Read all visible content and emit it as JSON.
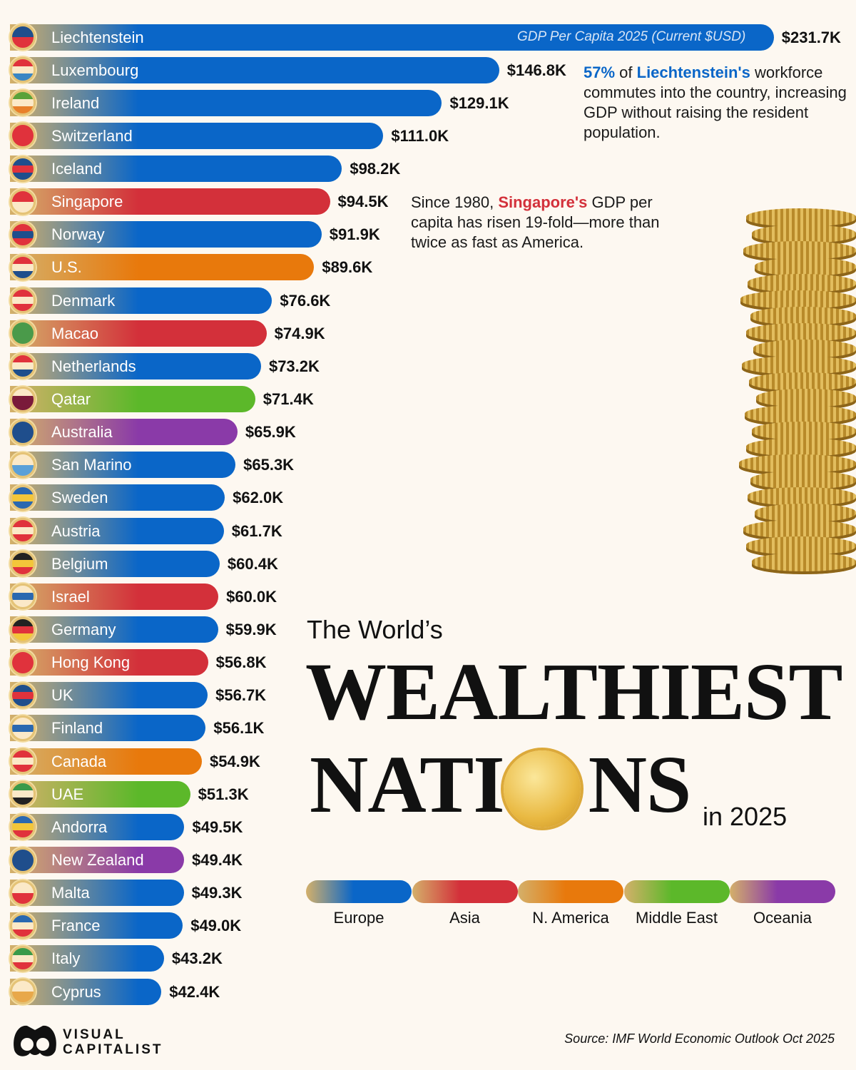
{
  "chart_data": {
    "type": "bar",
    "orientation": "horizontal",
    "title": "The World's WEALTHIEST NATIONS in 2025",
    "subtitle": "GDP Per Capita 2025 (Current $USD)",
    "value_format": "$K",
    "categories": [
      "Liechtenstein",
      "Luxembourg",
      "Ireland",
      "Switzerland",
      "Iceland",
      "Singapore",
      "Norway",
      "U.S.",
      "Denmark",
      "Macao",
      "Netherlands",
      "Qatar",
      "Australia",
      "San Marino",
      "Sweden",
      "Austria",
      "Belgium",
      "Israel",
      "Germany",
      "Hong Kong",
      "UK",
      "Finland",
      "Canada",
      "UAE",
      "Andorra",
      "New Zealand",
      "Malta",
      "France",
      "Italy",
      "Cyprus"
    ],
    "values": [
      231.7,
      146.8,
      129.1,
      111.0,
      98.2,
      94.5,
      91.9,
      89.6,
      76.6,
      74.9,
      73.2,
      71.4,
      65.9,
      65.3,
      62.0,
      61.7,
      60.4,
      60.0,
      59.9,
      56.8,
      56.7,
      56.1,
      54.9,
      51.3,
      49.5,
      49.4,
      49.3,
      49.0,
      43.2,
      42.4
    ],
    "labels": [
      "$231.7K",
      "$146.8K",
      "$129.1K",
      "$111.0K",
      "$98.2K",
      "$94.5K",
      "$91.9K",
      "$89.6K",
      "$76.6K",
      "$74.9K",
      "$73.2K",
      "$71.4K",
      "$65.9K",
      "$65.3K",
      "$62.0K",
      "$61.7K",
      "$60.4K",
      "$60.0K",
      "$59.9K",
      "$56.8K",
      "$56.7K",
      "$56.1K",
      "$54.9K",
      "$51.3K",
      "$49.5K",
      "$49.4K",
      "$49.3K",
      "$49.0K",
      "$43.2K",
      "$42.4K"
    ],
    "regions": [
      "Europe",
      "Europe",
      "Europe",
      "Europe",
      "Europe",
      "Asia",
      "Europe",
      "N. America",
      "Europe",
      "Asia",
      "Europe",
      "Middle East",
      "Oceania",
      "Europe",
      "Europe",
      "Europe",
      "Europe",
      "Asia",
      "Europe",
      "Asia",
      "Europe",
      "Europe",
      "N. America",
      "Middle East",
      "Europe",
      "Oceania",
      "Europe",
      "Europe",
      "Europe",
      "Europe"
    ],
    "legend": [
      {
        "name": "Europe",
        "color": "#0a66c8"
      },
      {
        "name": "Asia",
        "color": "#d3303a"
      },
      {
        "name": "N. America",
        "color": "#e8790c"
      },
      {
        "name": "Middle East",
        "color": "#5cb82a"
      },
      {
        "name": "Oceania",
        "color": "#8a3aa8"
      }
    ],
    "flag_colors": [
      [
        "#1f4e8c",
        "#e0323c"
      ],
      [
        "#e0323c",
        "#fbe9c8",
        "#3a86c3"
      ],
      [
        "#5aa23a",
        "#fbe9c8",
        "#e8802a"
      ],
      [
        "#e0323c",
        "#e0323c"
      ],
      [
        "#1f4e8c",
        "#e0323c",
        "#1f4e8c"
      ],
      [
        "#e0323c",
        "#fbe9c8"
      ],
      [
        "#e0323c",
        "#1f4e8c",
        "#e0323c"
      ],
      [
        "#e0323c",
        "#fbe9c8",
        "#1f4e8c"
      ],
      [
        "#e0323c",
        "#fbe9c8",
        "#e0323c"
      ],
      [
        "#4a9a4a",
        "#4a9a4a"
      ],
      [
        "#e0323c",
        "#fbe9c8",
        "#1f4e8c"
      ],
      [
        "#fbe9c8",
        "#7a1a3a",
        "#7a1a3a"
      ],
      [
        "#1f4e8c",
        "#1f4e8c"
      ],
      [
        "#fbe9c8",
        "#5aa0d8"
      ],
      [
        "#2a68b0",
        "#f3c63a",
        "#2a68b0"
      ],
      [
        "#e0323c",
        "#fbe9c8",
        "#e0323c"
      ],
      [
        "#222",
        "#f3c63a",
        "#e0323c"
      ],
      [
        "#fbe9c8",
        "#2a68b0",
        "#fbe9c8"
      ],
      [
        "#222",
        "#e0323c",
        "#f3c63a"
      ],
      [
        "#e0323c",
        "#e0323c"
      ],
      [
        "#1f4e8c",
        "#e0323c",
        "#1f4e8c"
      ],
      [
        "#fbe9c8",
        "#2a68b0",
        "#fbe9c8"
      ],
      [
        "#e0323c",
        "#fbe9c8",
        "#e0323c"
      ],
      [
        "#3a9a4a",
        "#fbe9c8",
        "#222"
      ],
      [
        "#2a68b0",
        "#f3c63a",
        "#e0323c"
      ],
      [
        "#1f4e8c",
        "#1f4e8c"
      ],
      [
        "#fbe9c8",
        "#e0323c"
      ],
      [
        "#2a68b0",
        "#fbe9c8",
        "#e0323c"
      ],
      [
        "#3a9a4a",
        "#fbe9c8",
        "#e0323c"
      ],
      [
        "#fbe9c8",
        "#e8a84a"
      ]
    ]
  },
  "annotations": {
    "liechtenstein": {
      "pct": "57%",
      "mid1": " of ",
      "name": "Liechtenstein's",
      "rest": " workforce commutes into the country, increasing GDP without raising the resident population."
    },
    "singapore": {
      "pre": "Since 1980, ",
      "name": "Singapore's",
      "rest": " GDP per capita has risen 19-fold—more than twice as fast as America."
    }
  },
  "title": {
    "line1": "The World’s",
    "line2": "WEALTHIEST",
    "line3a": "NATI",
    "line3b": "NS",
    "line4": "in 2025"
  },
  "source": "Source: IMF World Economic Outlook Oct 2025",
  "logo": {
    "line1": "VISUAL",
    "line2": "CAPITALIST"
  }
}
